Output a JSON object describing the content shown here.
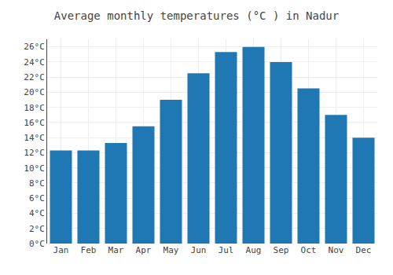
{
  "chart_data": {
    "type": "bar",
    "title": "Average monthly temperatures (°C ) in Nadur",
    "categories": [
      "Jan",
      "Feb",
      "Mar",
      "Apr",
      "May",
      "Jun",
      "Jul",
      "Aug",
      "Sep",
      "Oct",
      "Nov",
      "Dec"
    ],
    "values": [
      12.3,
      12.3,
      13.3,
      15.5,
      19.0,
      22.5,
      25.3,
      26.0,
      24.0,
      20.5,
      17.0,
      14.0
    ],
    "ylim": [
      0,
      27
    ],
    "yticks": [
      {
        "value": 0,
        "label": "0°C"
      },
      {
        "value": 2,
        "label": "2°C"
      },
      {
        "value": 4,
        "label": "4°C"
      },
      {
        "value": 6,
        "label": "6°C"
      },
      {
        "value": 8,
        "label": "8°C"
      },
      {
        "value": 10,
        "label": "10°C"
      },
      {
        "value": 12,
        "label": "12°C"
      },
      {
        "value": 14,
        "label": "14°C"
      },
      {
        "value": 16,
        "label": "16°C"
      },
      {
        "value": 18,
        "label": "18°C"
      },
      {
        "value": 20,
        "label": "20°C"
      },
      {
        "value": 22,
        "label": "22°C"
      },
      {
        "value": 24,
        "label": "24°C"
      },
      {
        "value": 26,
        "label": "26°C"
      }
    ],
    "grid": true
  }
}
